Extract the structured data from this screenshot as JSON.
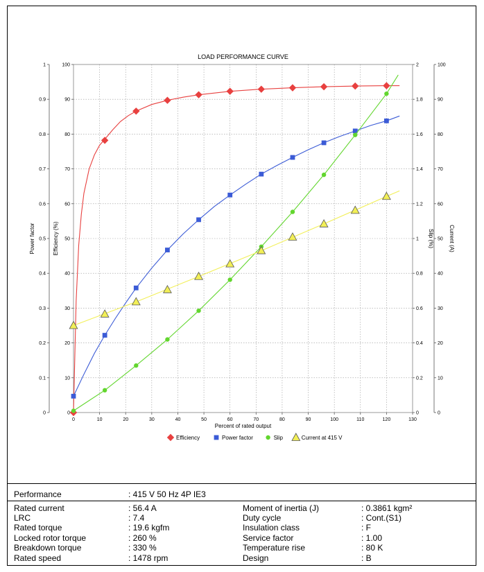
{
  "chart_data": {
    "type": "line",
    "title": "LOAD PERFORMANCE CURVE",
    "xlabel": "Percent of rated output",
    "x_ticks": [
      0,
      10,
      20,
      30,
      40,
      50,
      60,
      70,
      80,
      90,
      100,
      110,
      120,
      130
    ],
    "xlim": [
      0,
      130
    ],
    "grid": true,
    "legend_position": "bottom",
    "axes": [
      {
        "id": "pf",
        "label": "Power factor",
        "side": "left-outer",
        "ylim": [
          0,
          1
        ],
        "ticks": [
          "0",
          "0.1",
          "0.2",
          "0.3",
          "0.4",
          "0.5",
          "0.6",
          "0.7",
          "0.8",
          "0.9",
          "1"
        ]
      },
      {
        "id": "eff",
        "label": "Efficiency (%)",
        "side": "left-inner",
        "ylim": [
          0,
          100
        ],
        "ticks": [
          "0",
          "10",
          "20",
          "30",
          "40",
          "50",
          "60",
          "70",
          "80",
          "90",
          "100"
        ]
      },
      {
        "id": "slip",
        "label": "Slip (%)",
        "side": "right-inner",
        "ylim": [
          0,
          2
        ],
        "ticks": [
          "0",
          "0.2",
          "0.4",
          "0.6",
          "0.8",
          "1",
          "1.2",
          "1.4",
          "1.6",
          "1.8",
          "2"
        ]
      },
      {
        "id": "cur",
        "label": "Current (A)",
        "side": "right-outer",
        "ylim": [
          0,
          100
        ],
        "ticks": [
          "0",
          "10",
          "20",
          "30",
          "40",
          "50",
          "60",
          "70",
          "80",
          "90",
          "100"
        ]
      }
    ],
    "series": [
      {
        "name": "Efficiency",
        "axis": "eff",
        "color": "#e8403f",
        "marker": "diamond",
        "x": [
          0,
          12,
          24,
          36,
          48,
          60,
          72,
          84,
          96,
          108,
          120
        ],
        "y": [
          0,
          78.2,
          86.6,
          89.7,
          91.3,
          92.3,
          92.9,
          93.3,
          93.6,
          93.8,
          93.9
        ],
        "curve_x": [
          0,
          1,
          2,
          3,
          4,
          6,
          8,
          10,
          12,
          15,
          18,
          21,
          24,
          30,
          36,
          42,
          48,
          60,
          72,
          84,
          96,
          108,
          120,
          125
        ],
        "curve_y": [
          0,
          32,
          48,
          57,
          63,
          70,
          74,
          76.8,
          78.5,
          81.2,
          83.6,
          85.3,
          86.6,
          88.5,
          89.7,
          90.6,
          91.3,
          92.3,
          92.9,
          93.3,
          93.6,
          93.8,
          93.9,
          93.9
        ]
      },
      {
        "name": "Power factor",
        "axis": "pf",
        "color": "#3b5bd6",
        "marker": "square",
        "x": [
          0,
          12,
          24,
          36,
          48,
          60,
          72,
          84,
          96,
          108,
          120
        ],
        "y": [
          0.047,
          0.222,
          0.358,
          0.467,
          0.554,
          0.625,
          0.685,
          0.733,
          0.775,
          0.809,
          0.838
        ],
        "curve_x": [
          0,
          4,
          8,
          12,
          16,
          20,
          24,
          30,
          36,
          42,
          48,
          54,
          60,
          66,
          72,
          78,
          84,
          90,
          96,
          102,
          108,
          114,
          120,
          125
        ],
        "curve_y": [
          0.047,
          0.11,
          0.17,
          0.222,
          0.27,
          0.315,
          0.358,
          0.415,
          0.467,
          0.513,
          0.554,
          0.592,
          0.625,
          0.656,
          0.685,
          0.71,
          0.733,
          0.755,
          0.775,
          0.793,
          0.809,
          0.825,
          0.838,
          0.852
        ]
      },
      {
        "name": "Slip",
        "axis": "slip",
        "color": "#62d62e",
        "marker": "circle",
        "x": [
          0,
          12,
          24,
          36,
          48,
          60,
          72,
          84,
          96,
          108,
          120
        ],
        "y": [
          0.01,
          0.128,
          0.27,
          0.42,
          0.585,
          0.763,
          0.953,
          1.153,
          1.366,
          1.595,
          1.832
        ],
        "curve_x": [
          0,
          12,
          24,
          36,
          48,
          60,
          72,
          84,
          96,
          108,
          120,
          124.5
        ],
        "curve_y": [
          0.01,
          0.128,
          0.27,
          0.42,
          0.585,
          0.763,
          0.953,
          1.153,
          1.366,
          1.595,
          1.832,
          1.94
        ]
      },
      {
        "name": "Current at 415 V",
        "axis": "cur",
        "color": "#f2ef56",
        "marker": "triangle",
        "x": [
          0,
          12,
          24,
          36,
          48,
          60,
          72,
          84,
          96,
          108,
          120
        ],
        "y": [
          25,
          28.3,
          31.8,
          35.3,
          39.1,
          42.7,
          46.5,
          50.4,
          54.2,
          58.1,
          62.1
        ],
        "curve_x": [
          0,
          24,
          48,
          72,
          96,
          120,
          125
        ],
        "curve_y": [
          25,
          31.8,
          39.1,
          46.5,
          54.2,
          62.1,
          63.7
        ]
      }
    ]
  },
  "spec": {
    "performance_label": "Performance",
    "performance_value": ": 415 V 50 Hz 4P IE3",
    "left": [
      {
        "label": "Rated current",
        "value": ": 56.4 A"
      },
      {
        "label": "LRC",
        "value": ": 7.4"
      },
      {
        "label": "Rated torque",
        "value": ": 19.6 kgfm"
      },
      {
        "label": "Locked rotor torque",
        "value": ": 260 %"
      },
      {
        "label": "Breakdown torque",
        "value": ": 330 %"
      },
      {
        "label": "Rated speed",
        "value": ": 1478 rpm"
      }
    ],
    "right": [
      {
        "label": "Moment of inertia (J)",
        "value": ": 0.3861 kgm²"
      },
      {
        "label": "Duty cycle",
        "value": ": Cont.(S1)"
      },
      {
        "label": "Insulation class",
        "value": ": F"
      },
      {
        "label": "Service factor",
        "value": ": 1.00"
      },
      {
        "label": "Temperature rise",
        "value": ": 80 K"
      },
      {
        "label": "Design",
        "value": ": B"
      }
    ]
  }
}
